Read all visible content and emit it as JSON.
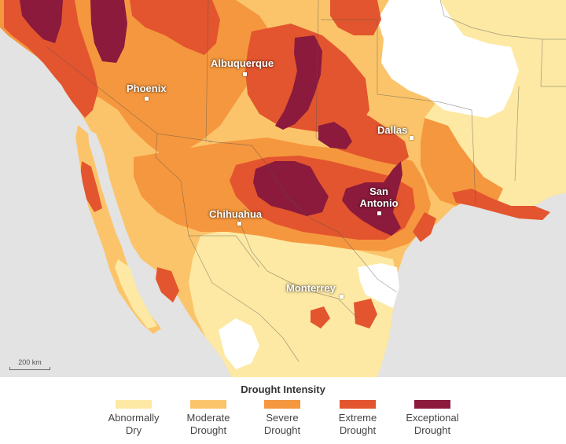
{
  "map": {
    "cities": [
      {
        "name": "Albuquerque"
      },
      {
        "name": "Phoenix"
      },
      {
        "name": "Dallas"
      },
      {
        "name": "San Antonio"
      },
      {
        "name": "Chihuahua"
      },
      {
        "name": "Monterrey"
      }
    ],
    "scale_label": "200 km",
    "colors": {
      "no_data": "#e5e5e5",
      "no_drought": "#ffffff",
      "abnormally_dry": "#fde9a3",
      "moderate": "#fbc46a",
      "severe": "#f5973e",
      "extreme": "#e3552e",
      "exceptional": "#8b1a3c"
    }
  },
  "legend": {
    "title": "Drought Intensity",
    "items": [
      {
        "line1": "Abnormally",
        "line2": "Dry",
        "color": "#fde9a3"
      },
      {
        "line1": "Moderate",
        "line2": "Drought",
        "color": "#fbc46a"
      },
      {
        "line1": "Severe",
        "line2": "Drought",
        "color": "#f5973e"
      },
      {
        "line1": "Extreme",
        "line2": "Drought",
        "color": "#e3552e"
      },
      {
        "line1": "Exceptional",
        "line2": "Drought",
        "color": "#8b1a3c"
      }
    ]
  }
}
